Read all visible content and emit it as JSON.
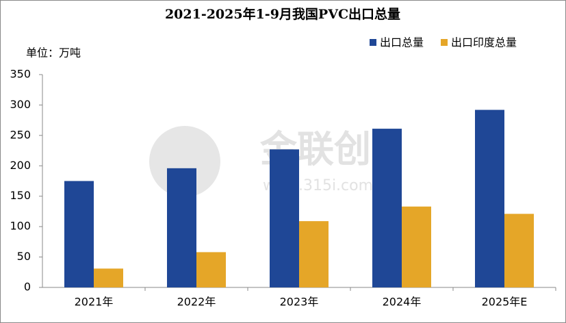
{
  "chart_data": {
    "type": "bar",
    "title": "2021-2025年1-9月我国PVC出口总量",
    "y_unit": "单位：万吨",
    "categories": [
      "2021年",
      "2022年",
      "2023年",
      "2024年",
      "2025年E"
    ],
    "series": [
      {
        "name": "出口总量",
        "color": "#1f4796",
        "values": [
          175,
          196,
          227,
          261,
          292
        ]
      },
      {
        "name": "出口印度总量",
        "color": "#e5a628",
        "values": [
          31,
          58,
          109,
          133,
          121
        ]
      }
    ],
    "ylim": [
      0,
      350
    ],
    "yticks": [
      0,
      50,
      100,
      150,
      200,
      250,
      300,
      350
    ],
    "grid": false,
    "legend": "top-right",
    "watermark": {
      "brand": "金联创",
      "url": "www.315i.com"
    }
  }
}
